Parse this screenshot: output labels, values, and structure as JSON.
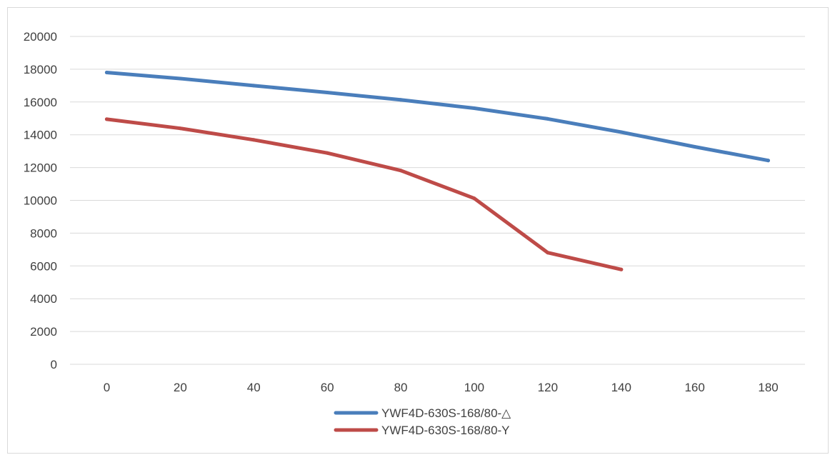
{
  "chart_data": {
    "type": "line",
    "title": "",
    "xlabel": "",
    "ylabel": "",
    "xlim": [
      0,
      180
    ],
    "ylim": [
      0,
      20000
    ],
    "x_ticks": [
      "0",
      "20",
      "40",
      "60",
      "80",
      "100",
      "120",
      "140",
      "160",
      "180"
    ],
    "y_ticks": [
      "0",
      "2000",
      "4000",
      "6000",
      "8000",
      "10000",
      "12000",
      "14000",
      "16000",
      "18000",
      "20000"
    ],
    "grid": "horizontal",
    "legend_position": "bottom",
    "series": [
      {
        "name": "YWF4D-630S-168/80-△",
        "color": "#4a7ebb",
        "x": [
          0,
          20,
          40,
          60,
          80,
          100,
          120,
          140,
          160,
          180
        ],
        "y": [
          17800,
          17430,
          17000,
          16580,
          16130,
          15620,
          14970,
          14160,
          13270,
          12430
        ]
      },
      {
        "name": "YWF4D-630S-168/80-Y",
        "color": "#be4b48",
        "x": [
          0,
          20,
          40,
          60,
          80,
          100,
          120,
          140
        ],
        "y": [
          14950,
          14390,
          13690,
          12890,
          11820,
          10120,
          6810,
          5780
        ]
      }
    ]
  }
}
